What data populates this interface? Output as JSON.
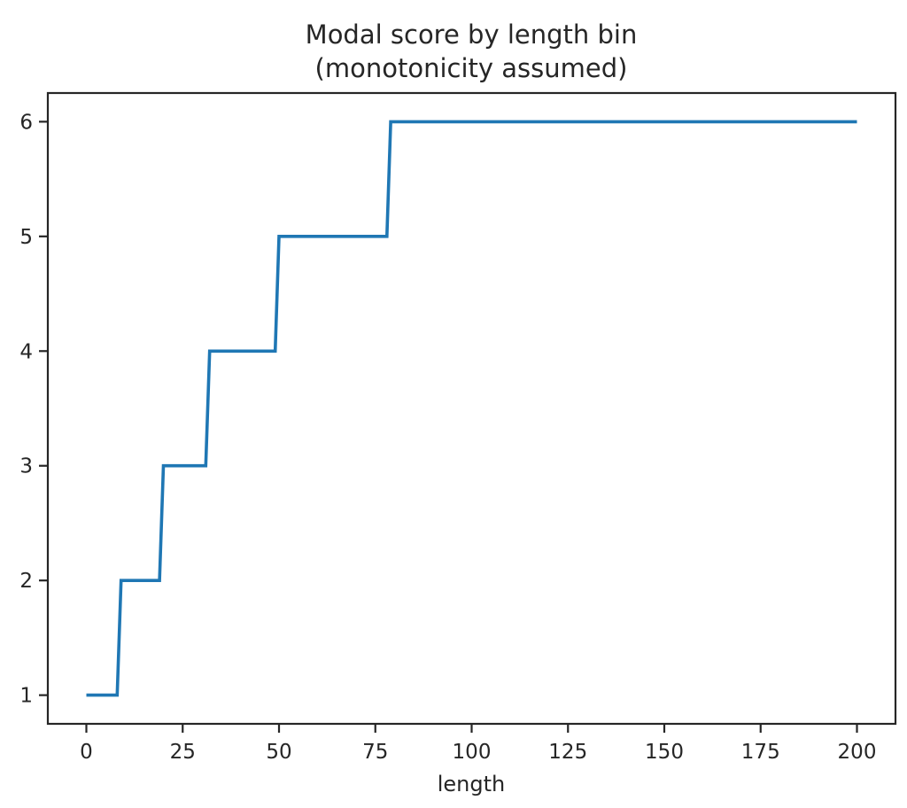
{
  "figure": {
    "title_line1": "Modal score by length bin",
    "title_line2": "(monotonicity assumed)",
    "xlabel": "length",
    "background_color": "#ffffff",
    "axis_color": "#262626",
    "line_color": "#1f77b4"
  },
  "chart_data": {
    "type": "line",
    "title": "Modal score by length bin (monotonicity assumed)",
    "xlabel": "length",
    "ylabel": "",
    "xlim": [
      -10,
      210
    ],
    "ylim": [
      0.75,
      6.25
    ],
    "xticks": [
      0,
      25,
      50,
      75,
      100,
      125,
      150,
      175,
      200
    ],
    "yticks": [
      1,
      2,
      3,
      4,
      5,
      6
    ],
    "grid": false,
    "legend_position": "none",
    "series": [
      {
        "name": "modal_score_step",
        "color": "#1f77b4",
        "points": [
          [
            0,
            1
          ],
          [
            8,
            1
          ],
          [
            9,
            2
          ],
          [
            19,
            2
          ],
          [
            20,
            3
          ],
          [
            31,
            3
          ],
          [
            32,
            4
          ],
          [
            49,
            4
          ],
          [
            50,
            5
          ],
          [
            78,
            5
          ],
          [
            79,
            6
          ],
          [
            200,
            6
          ]
        ]
      }
    ]
  }
}
